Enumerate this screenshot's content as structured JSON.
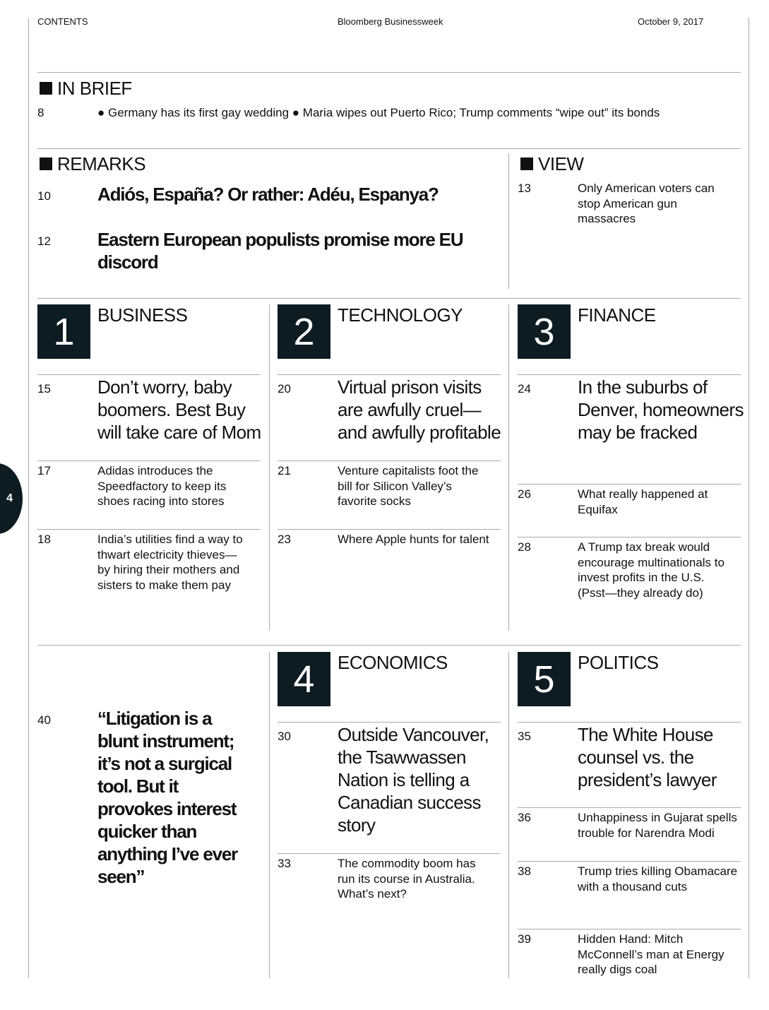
{
  "header": {
    "section": "CONTENTS",
    "publication": "Bloomberg Businessweek",
    "date": "October 9, 2017"
  },
  "page_tab": "4",
  "in_brief": {
    "title": "IN BRIEF",
    "page": "8",
    "items": [
      "Germany has its first gay wedding",
      "Maria wipes out Puerto Rico; Trump comments “wipe out” its bonds"
    ]
  },
  "remarks": {
    "title": "REMARKS",
    "items": [
      {
        "page": "10",
        "text": "Adiós, España? Or rather: Adéu, Espanya?"
      },
      {
        "page": "12",
        "text": "Eastern European populists promise more EU discord"
      }
    ]
  },
  "view": {
    "title": "VIEW",
    "items": [
      {
        "page": "13",
        "text": "Only American voters can stop American gun massacres"
      }
    ]
  },
  "sections": [
    {
      "number": "1",
      "title": "BUSINESS",
      "lead": {
        "page": "15",
        "text": "Don’t worry, baby boomers. Best Buy will take care of Mom"
      },
      "items": [
        {
          "page": "17",
          "text": "Adidas introduces the Speedfactory to keep its shoes racing into stores"
        },
        {
          "page": "18",
          "text": "India’s utilities find a way to thwart electricity thieves—by hiring their mothers and sisters to make them pay"
        }
      ]
    },
    {
      "number": "2",
      "title": "TECHNOLOGY",
      "lead": {
        "page": "20",
        "text": "Virtual prison visits are awfully cruel—and awfully profitable"
      },
      "items": [
        {
          "page": "21",
          "text": "Venture capitalists foot the bill for Silicon Valley’s favorite socks"
        },
        {
          "page": "23",
          "text": "Where Apple hunts for talent"
        }
      ]
    },
    {
      "number": "3",
      "title": "FINANCE",
      "lead": {
        "page": "24",
        "text": "In the suburbs of Denver, homeowners may be fracked"
      },
      "items": [
        {
          "page": "26",
          "text": "What really happened at Equifax"
        },
        {
          "page": "28",
          "text": "A Trump tax break would encourage multinationals to invest profits in the U.S. (Psst—they already do)"
        }
      ]
    },
    {
      "number": "4",
      "title": "ECONOMICS",
      "lead": {
        "page": "30",
        "text": "Outside Vancouver, the Tsawwassen Nation is telling a Canadian success story"
      },
      "items": [
        {
          "page": "33",
          "text": "The commodity boom has run its course in Australia. What’s next?"
        }
      ]
    },
    {
      "number": "5",
      "title": "POLITICS",
      "lead": {
        "page": "35",
        "text": "The White House counsel vs. the president’s lawyer"
      },
      "items": [
        {
          "page": "36",
          "text": "Unhappiness in Gujarat spells trouble for Narendra Modi"
        },
        {
          "page": "38",
          "text": "Trump tries killing Obamacare with a thousand cuts"
        },
        {
          "page": "39",
          "text": "Hidden Hand: Mitch McConnell’s man at Energy really digs coal"
        }
      ]
    }
  ],
  "quote": {
    "page": "40",
    "text": "“Litigation is a blunt instrument; it’s not a surgical tool. But it provokes interest quicker than anything I’ve ever seen”"
  }
}
